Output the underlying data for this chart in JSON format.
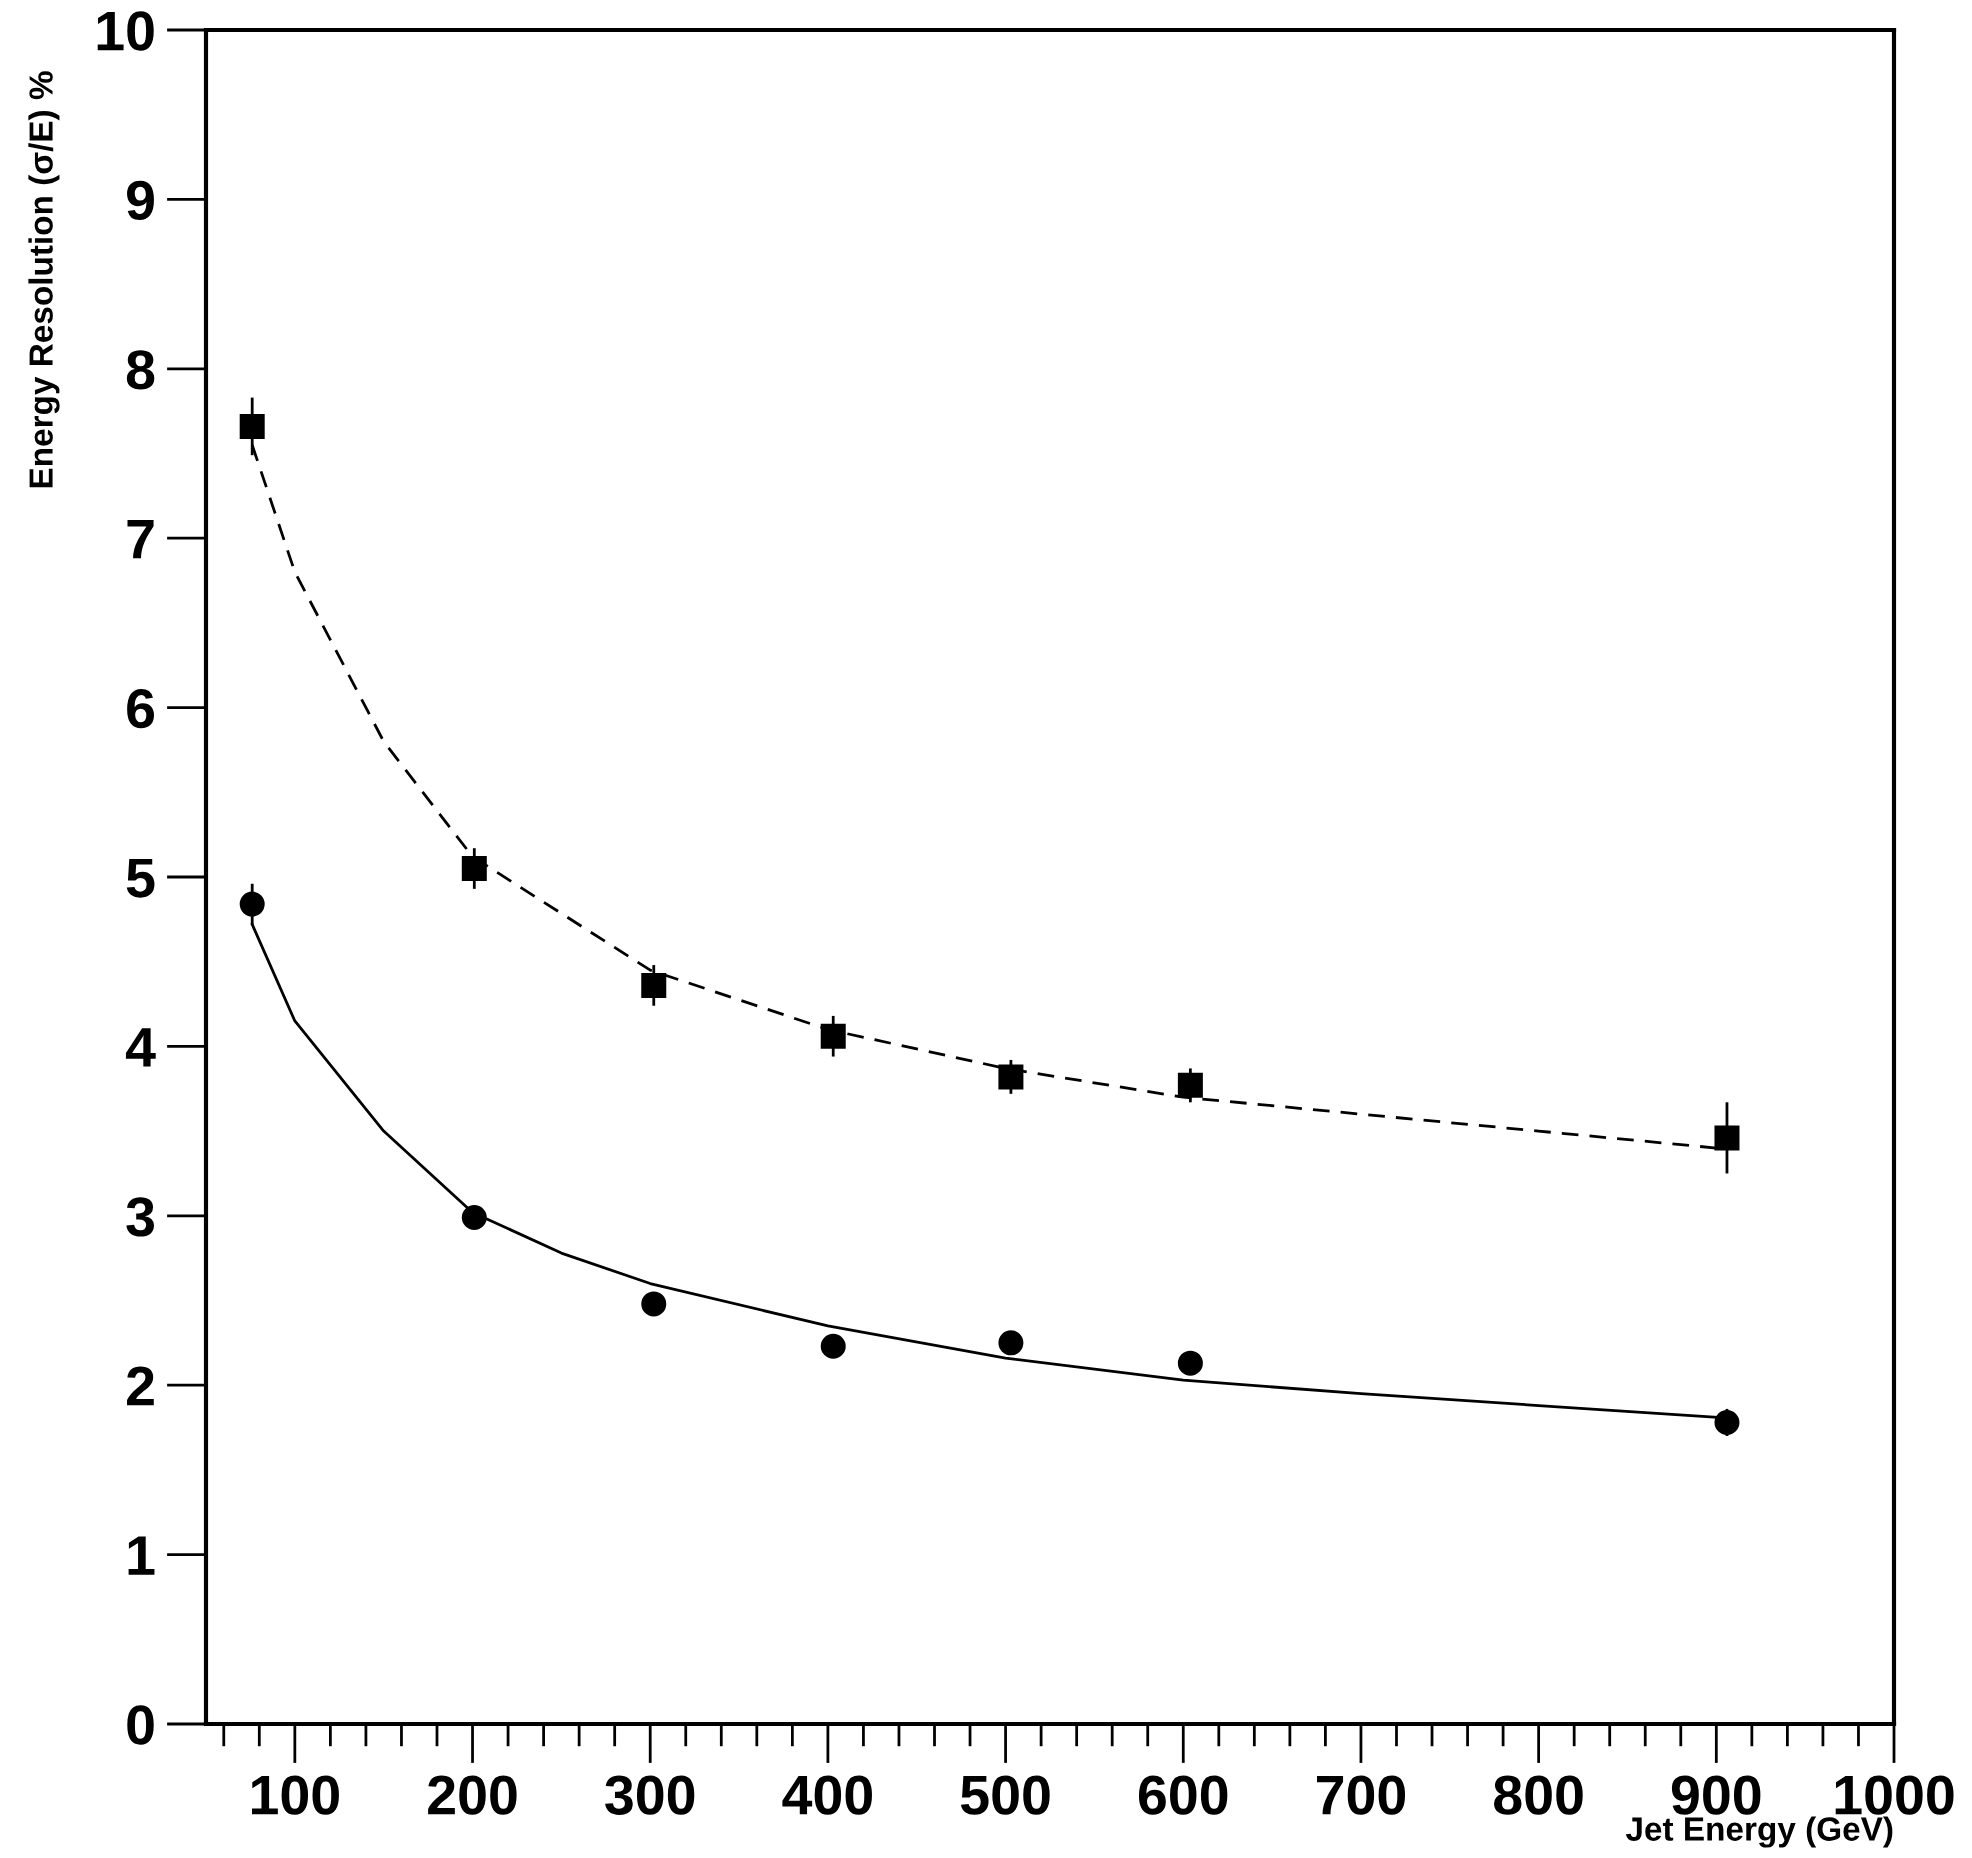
{
  "chart_data": {
    "type": "scatter",
    "xlabel": "Jet Energy (GeV)",
    "ylabel": "Energy Resolution (σ/E) %",
    "xlim": [
      50,
      1000
    ],
    "xticks": [
      100,
      200,
      300,
      400,
      500,
      600,
      700,
      800,
      900,
      1000
    ],
    "ylim": [
      0,
      10
    ],
    "yticks": [
      0,
      1,
      2,
      3,
      4,
      5,
      6,
      7,
      8,
      9,
      10
    ],
    "grid": false,
    "series": [
      {
        "marker": "circle",
        "color": "#000000",
        "x": [
          76,
          201,
          302,
          403,
          503,
          604,
          906
        ],
        "values": [
          4.84,
          2.99,
          2.48,
          2.23,
          2.25,
          2.13,
          1.78
        ],
        "errors": [
          0.12,
          null,
          null,
          null,
          null,
          null,
          0.08
        ]
      },
      {
        "marker": "square",
        "color": "#000000",
        "x": [
          76,
          201,
          302,
          403,
          503,
          604,
          906
        ],
        "values": [
          7.66,
          5.05,
          4.36,
          4.06,
          3.82,
          3.77,
          3.46
        ],
        "errors": [
          0.17,
          0.12,
          0.12,
          0.12,
          0.1,
          0.1,
          0.21
        ]
      },
      {
        "type": "line",
        "marker": "none",
        "line_style": "solid",
        "color": "#000000",
        "x": [
          76,
          100,
          150,
          200,
          250,
          300,
          400,
          500,
          600,
          700,
          800,
          900
        ],
        "values": [
          4.72,
          4.15,
          3.5,
          3.02,
          2.78,
          2.6,
          2.35,
          2.16,
          2.03,
          1.95,
          1.88,
          1.81
        ]
      },
      {
        "type": "line",
        "marker": "none",
        "line_style": "dashed",
        "color": "#000000",
        "x": [
          76,
          100,
          150,
          200,
          300,
          400,
          500,
          600,
          700,
          800,
          900
        ],
        "values": [
          7.55,
          6.8,
          5.8,
          5.12,
          4.45,
          4.1,
          3.87,
          3.7,
          3.6,
          3.5,
          3.4
        ]
      }
    ]
  }
}
